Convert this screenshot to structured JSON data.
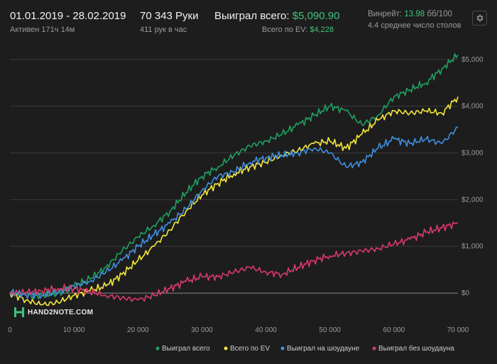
{
  "header": {
    "date_range": "01.01.2019 - 28.02.2019",
    "active": "Активен 171ч 14м",
    "hands": "70 343 Руки",
    "hands_rate": "411 рук в час",
    "won_label": "Выиграл всего:",
    "won_value": "$5,090.90",
    "ev_label": "Всего по EV:",
    "ev_value": "$4,228",
    "winrate_label": "Винрейт:",
    "winrate_value": "13.98",
    "winrate_unit": "бб/100",
    "tables": "4.4 среднее число столов"
  },
  "logo": {
    "text": "HAND2NOTE.COM"
  },
  "colors": {
    "background": "#1d1d1d",
    "won_total": "#1fa060",
    "ev_total": "#f5e83a",
    "showdown": "#3f8fe0",
    "non_showdown": "#d83a6a",
    "accent": "#3fc37a"
  },
  "chart_data": {
    "type": "line",
    "xlim": [
      0,
      70000
    ],
    "ylim": [
      -500,
      5300
    ],
    "x_ticks": [
      0,
      10000,
      20000,
      30000,
      40000,
      50000,
      60000,
      70000
    ],
    "x_tick_labels": [
      "0",
      "10 000",
      "20 000",
      "30 000",
      "40 000",
      "50 000",
      "60 000",
      "70 000"
    ],
    "y_ticks": [
      0,
      1000,
      2000,
      3000,
      4000,
      5000
    ],
    "y_tick_labels": [
      "$0",
      "$1,000",
      "$2,000",
      "$3,000",
      "$4,000",
      "$5,000"
    ],
    "grid": true,
    "legend_position": "bottom-right",
    "x": [
      0,
      2500,
      5000,
      7500,
      10000,
      12500,
      15000,
      17500,
      20000,
      22500,
      25000,
      27500,
      30000,
      32500,
      35000,
      37500,
      40000,
      42500,
      45000,
      47500,
      50000,
      52500,
      55000,
      57500,
      60000,
      62500,
      65000,
      67500,
      70000
    ],
    "series": [
      {
        "name": "Выиграл всего",
        "color": "#1fa060",
        "values": [
          0,
          -50,
          -60,
          0,
          150,
          300,
          550,
          900,
          1200,
          1450,
          1750,
          2150,
          2500,
          2700,
          2950,
          3150,
          3250,
          3400,
          3600,
          3800,
          4000,
          3900,
          3600,
          3800,
          4200,
          4350,
          4500,
          4800,
          5100
        ]
      },
      {
        "name": "Всего по EV",
        "color": "#f5e83a",
        "values": [
          0,
          -150,
          -250,
          -200,
          -50,
          50,
          150,
          400,
          700,
          1000,
          1350,
          1750,
          2100,
          2350,
          2550,
          2700,
          2800,
          2950,
          3050,
          3200,
          3250,
          3100,
          3400,
          3700,
          3900,
          3850,
          3900,
          3850,
          4200
        ]
      },
      {
        "name": "Выиграл на шоудауне",
        "color": "#3f8fe0",
        "values": [
          0,
          -30,
          -40,
          20,
          150,
          250,
          450,
          700,
          1000,
          1250,
          1500,
          1800,
          2200,
          2500,
          2600,
          2800,
          2900,
          2950,
          3000,
          3100,
          3000,
          2700,
          2800,
          3100,
          3300,
          3200,
          3300,
          3200,
          3550
        ]
      },
      {
        "name": "Выиграл без шоудауна",
        "color": "#d83a6a",
        "values": [
          0,
          20,
          50,
          100,
          100,
          30,
          -50,
          -100,
          -150,
          -50,
          100,
          250,
          350,
          350,
          450,
          550,
          450,
          400,
          550,
          700,
          800,
          850,
          900,
          950,
          1050,
          1150,
          1300,
          1400,
          1500
        ]
      }
    ]
  }
}
